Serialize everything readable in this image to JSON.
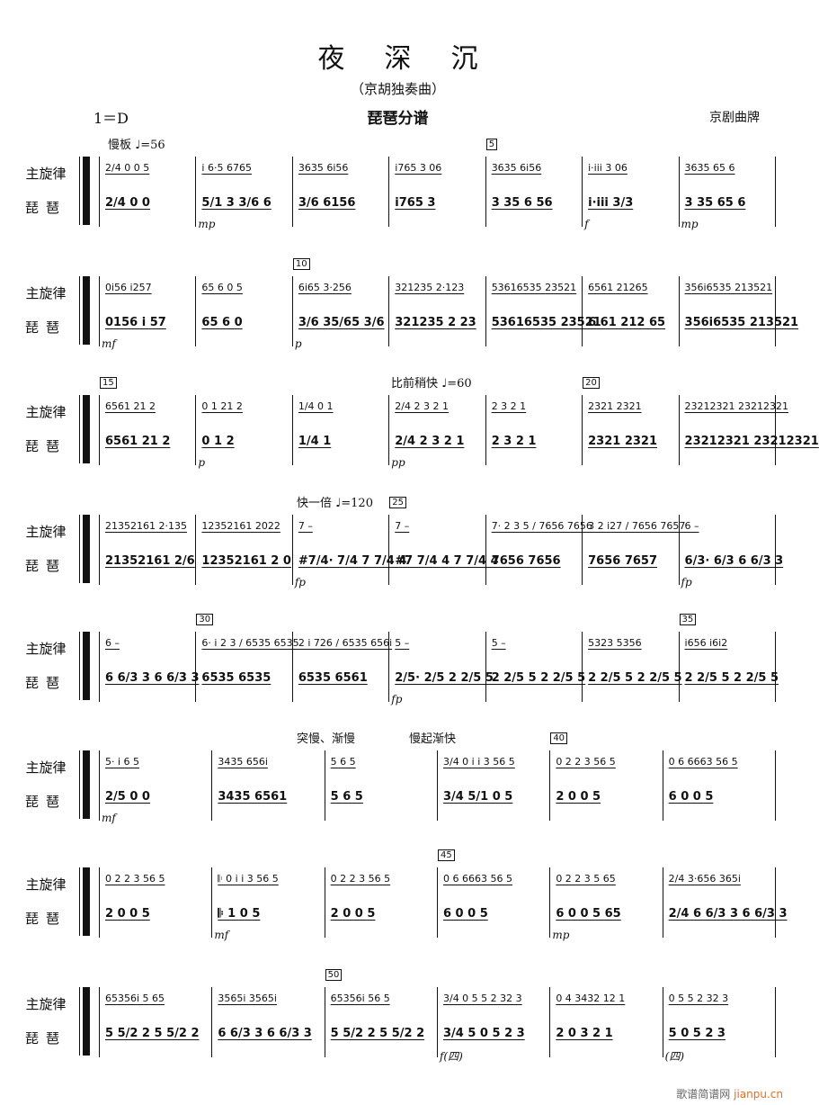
{
  "header": {
    "title": "夜深沉",
    "subtitle": "（京胡独奏曲）",
    "key": "1＝D",
    "part": "琵琶分谱",
    "source": "京剧曲牌"
  },
  "labels": {
    "melody": "主旋律",
    "pipa": "琵琶"
  },
  "watermark": {
    "text": "歌谱简谱网",
    "domain": "jianpu.cn"
  },
  "systems": [
    {
      "above": [
        {
          "text": "慢板 ♩=56",
          "at": 0
        }
      ],
      "measures": [
        {
          "m": "2/4  0  0 5",
          "p": "2/4  0  0"
        },
        {
          "m": "i 6·5 6765",
          "p": "5/1  3 3/6 6",
          "dyn": "mp"
        },
        {
          "m": "3635 6i56",
          "p": "3/6  6156"
        },
        {
          "m": "i765 3 06",
          "p": "i765 3"
        },
        {
          "m": "3635 6i56",
          "p": "3 35 6 56",
          "num": "5"
        },
        {
          "m": "i·iii 3 06",
          "p": "i·iii 3/3",
          "dyn": "f"
        },
        {
          "m": "3635 65 6",
          "p": "3 35 65 6",
          "dyn": "mp"
        }
      ]
    },
    {
      "above": [],
      "measures": [
        {
          "m": "0i56 i257",
          "p": "0156 i 57",
          "dyn": "mf"
        },
        {
          "m": "65 6 0 5",
          "p": "65 6 0"
        },
        {
          "m": "6i65 3·256",
          "p": "3/6 35/65 3/6",
          "num": "10",
          "dyn": "p"
        },
        {
          "m": "321235 2·123",
          "p": "321235 2 23"
        },
        {
          "m": "53616535 23521",
          "p": "53616535 23521"
        },
        {
          "m": "6561 21265",
          "p": "6 61 212 65"
        },
        {
          "m": "356i6535 213521",
          "p": "356i6535 213521"
        }
      ]
    },
    {
      "above": [
        {
          "text": "比前稍快 ♩=60",
          "at": 3
        }
      ],
      "measures": [
        {
          "m": "6561 21 2",
          "p": "6561 21 2",
          "num": "15"
        },
        {
          "m": "0 1 21 2",
          "p": "0 1 2",
          "dyn": "p"
        },
        {
          "m": "1/4  0 1",
          "p": "1/4  1"
        },
        {
          "m": "2/4 2 3 2 1",
          "p": "2/4 2 3 2 1",
          "dyn": "pp"
        },
        {
          "m": "2 3 2 1",
          "p": "2 3 2 1"
        },
        {
          "m": "2321 2321",
          "p": "2321 2321",
          "num": "20"
        },
        {
          "m": "23212321 23212321",
          "p": "23212321 23212321"
        }
      ]
    },
    {
      "above": [
        {
          "text": "快一倍 ♩=120",
          "at": 2
        }
      ],
      "measures": [
        {
          "m": "21352161 2·135",
          "p": "21352161 2/6"
        },
        {
          "m": "12352161 2022",
          "p": "12352161 2 0"
        },
        {
          "m": "7 –",
          "p": "#7/4· 7/4 7 7/4 4",
          "dyn": "fp"
        },
        {
          "m": "7 –",
          "p": "#7 7/4 4 7 7/4 4",
          "num": "25"
        },
        {
          "m": "7· 2 3 5 / 7656 7656",
          "p": "7656 7656"
        },
        {
          "m": "3 2 i27 / 7656 7657",
          "p": "7656 7657"
        },
        {
          "m": "6 –",
          "p": "6/3· 6/3 6 6/3 3",
          "dyn": "fp"
        }
      ]
    },
    {
      "above": [],
      "measures": [
        {
          "m": "6 –",
          "p": "6 6/3 3 6 6/3 3"
        },
        {
          "m": "6· i 2 3 / 6535 6535",
          "p": "6535 6535",
          "num": "30"
        },
        {
          "m": "2 i 726 / 6535 656i",
          "p": "6535 6561"
        },
        {
          "m": "5 –",
          "p": "2/5· 2/5 2 2/5 5",
          "dyn": "fp"
        },
        {
          "m": "5 –",
          "p": "2 2/5 5 2 2/5 5"
        },
        {
          "m": "5323 5356",
          "p": "2 2/5 5 2 2/5 5"
        },
        {
          "m": "i656 i6i2",
          "p": "2 2/5 5 2 2/5 5",
          "num": "35"
        }
      ]
    },
    {
      "above": [
        {
          "text": "突慢、渐慢",
          "at": 2
        },
        {
          "text": "慢起渐快",
          "at": 3
        }
      ],
      "measures": [
        {
          "m": "5· i 6 5",
          "p": "2/5 0  0",
          "dyn": "mf"
        },
        {
          "m": "3435 656i",
          "p": "3435 6561"
        },
        {
          "m": "5 6 5",
          "p": "5 6 5"
        },
        {
          "m": "3/4 0 i i 3 56 5",
          "p": "3/4 5/1  0  5"
        },
        {
          "m": "0 2 2 3 56 5",
          "p": "2 0  0  5",
          "num": "40"
        },
        {
          "m": "0 6 6663 56 5",
          "p": "6 0 0  5"
        }
      ]
    },
    {
      "above": [],
      "measures": [
        {
          "m": "0 2 2 3 56 5",
          "p": "2 0 0 5"
        },
        {
          "m": "𝄆 0 i i 3 56 5",
          "p": "𝄆 1 0 5",
          "dyn": "mf"
        },
        {
          "m": "0 2 2 3 56 5",
          "p": "2 0 0 5"
        },
        {
          "m": "0 6 6663 56 5",
          "p": "6 0 0 5",
          "num": "45"
        },
        {
          "m": "0 2 2 3 5 65",
          "p": "6 0 0 5 65",
          "dyn": "mp"
        },
        {
          "m": "2/4 3·656 365i",
          "p": "2/4 6 6/3 3 6 6/3 3"
        }
      ]
    },
    {
      "above": [],
      "measures": [
        {
          "m": "65356i 5 65",
          "p": "5 5/2 2 5 5/2 2"
        },
        {
          "m": "3565i 3565i",
          "p": "6 6/3 3 6 6/3 3"
        },
        {
          "m": "65356i 56 5",
          "p": "5 5/2 2 5 5/2 2",
          "num": "50"
        },
        {
          "m": "3/4 0 5 5 2 32 3",
          "p": "3/4 5 0 5 2 3",
          "dyn": "f(四)"
        },
        {
          "m": "0 4 3432 12 1",
          "p": "2 0 3 2 1"
        },
        {
          "m": "0 5 5 2 32 3",
          "p": "5 0 5 2 3",
          "dyn": "(四)"
        }
      ]
    }
  ]
}
